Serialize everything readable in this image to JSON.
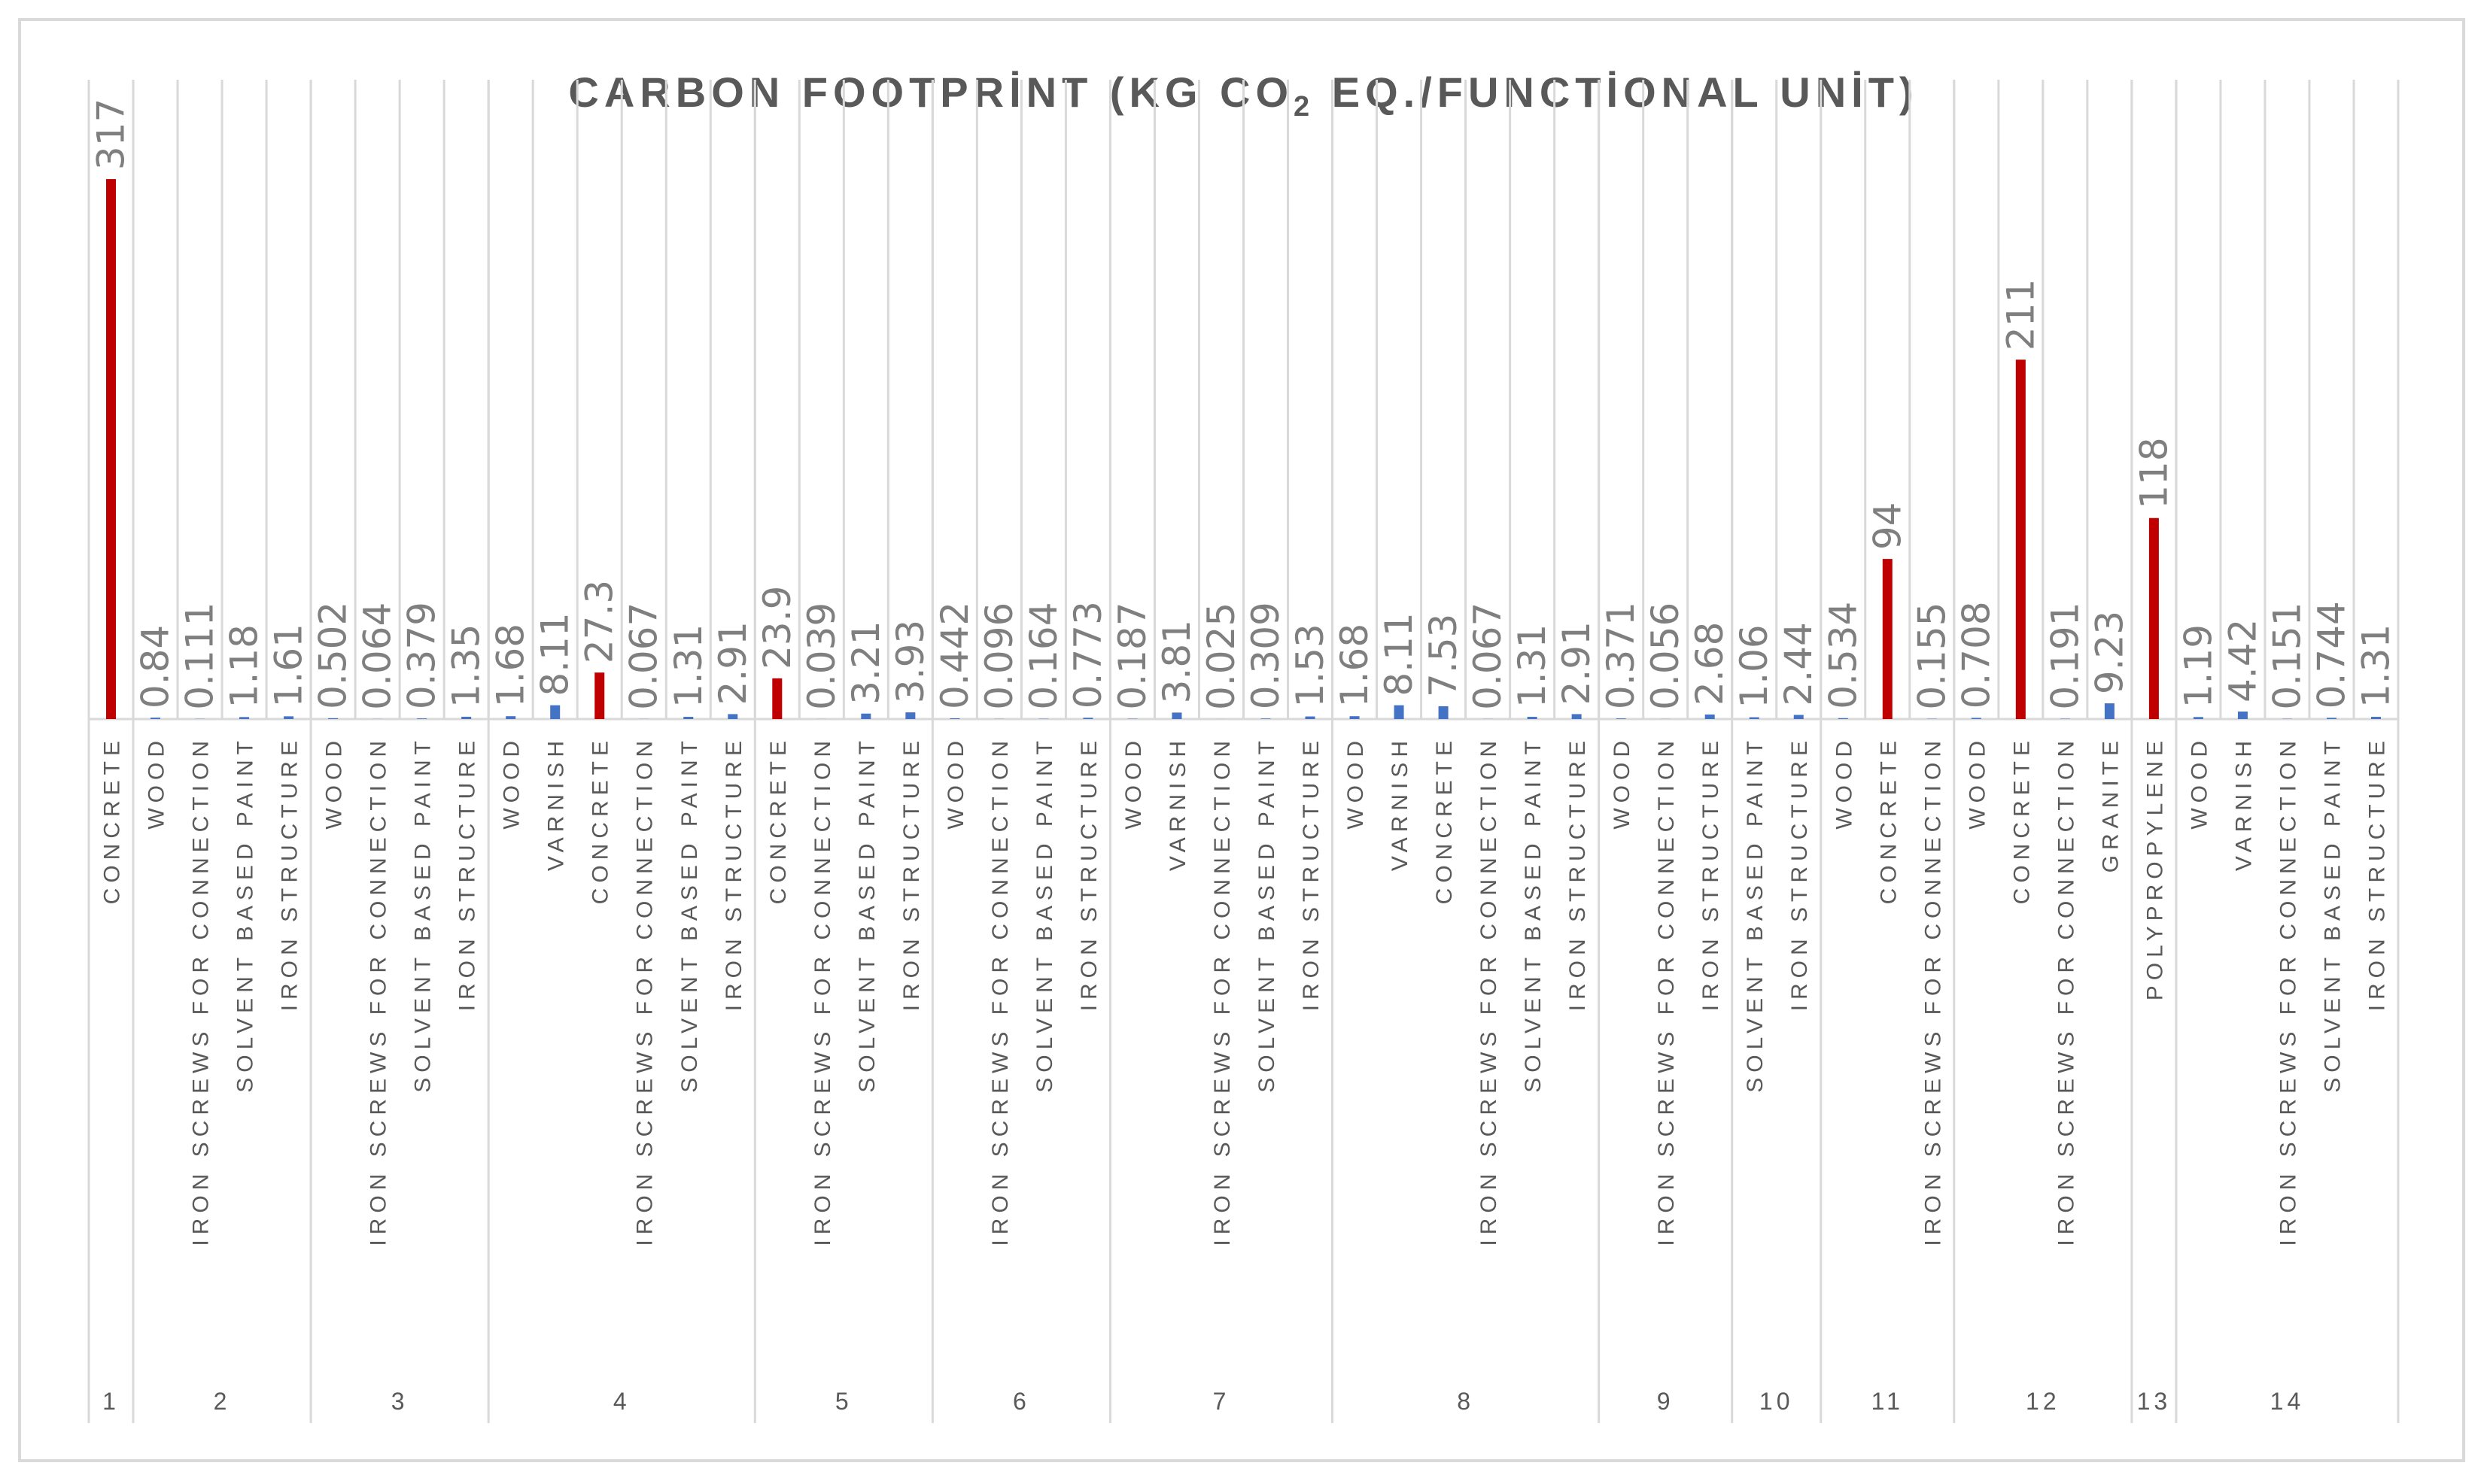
{
  "chart_data": {
    "type": "bar",
    "title_parts": [
      "CARBON FOOTPRİNT (KG CO",
      "2",
      " EQ./FUNCTİONAL UNİT)"
    ],
    "value_labels": [
      "317",
      "0.84",
      "0.111",
      "1.18",
      "1.61",
      "0.502",
      "0.064",
      "0.379",
      "1.35",
      "1.68",
      "8.11",
      "27.3",
      "0.067",
      "1.31",
      "2.91",
      "23.9",
      "0.039",
      "3.21",
      "3.93",
      "0.442",
      "0.096",
      "0.164",
      "0.773",
      "0.187",
      "3.81",
      "0.025",
      "0.309",
      "1.53",
      "1.68",
      "8.11",
      "7.53",
      "0.067",
      "1.31",
      "2.91",
      "0.371",
      "0.056",
      "2.68",
      "1.06",
      "2.44",
      "0.534",
      "94",
      "0.155",
      "0.708",
      "211",
      "0.191",
      "9.23",
      "118",
      "1.19",
      "4.42",
      "0.151",
      "0.744",
      "1.31"
    ],
    "ylim": [
      0,
      340
    ],
    "colors": {
      "highlight": "#c00000",
      "normal": "#4472c4"
    },
    "groups": [
      {
        "label": "1",
        "items": [
          {
            "category": "CONCRETE",
            "value": 317,
            "highlight": true
          }
        ]
      },
      {
        "label": "2",
        "items": [
          {
            "category": "WOOD",
            "value": 0.84
          },
          {
            "category": "IRON SCREWS FOR CONNECTION",
            "value": 0.111
          },
          {
            "category": "SOLVENT BASED PAINT",
            "value": 1.18
          },
          {
            "category": "IRON STRUCTURE",
            "value": 1.61
          }
        ]
      },
      {
        "label": "3",
        "items": [
          {
            "category": "WOOD",
            "value": 0.502
          },
          {
            "category": "IRON SCREWS FOR CONNECTION",
            "value": 0.064
          },
          {
            "category": "SOLVENT BASED PAINT",
            "value": 0.379
          },
          {
            "category": "IRON STRUCTURE",
            "value": 1.35
          }
        ]
      },
      {
        "label": "4",
        "items": [
          {
            "category": "WOOD",
            "value": 1.68
          },
          {
            "category": "VARNISH",
            "value": 8.11
          },
          {
            "category": "CONCRETE",
            "value": 27.3,
            "highlight": true
          },
          {
            "category": "IRON SCREWS FOR CONNECTION",
            "value": 0.067
          },
          {
            "category": "SOLVENT BASED PAINT",
            "value": 1.31
          },
          {
            "category": "IRON STRUCTURE",
            "value": 2.91
          }
        ]
      },
      {
        "label": "5",
        "items": [
          {
            "category": "CONCRETE",
            "value": 23.9,
            "highlight": true
          },
          {
            "category": "IRON SCREWS FOR CONNECTION",
            "value": 0.039
          },
          {
            "category": "SOLVENT BASED PAINT",
            "value": 3.21
          },
          {
            "category": "IRON STRUCTURE",
            "value": 3.93
          }
        ]
      },
      {
        "label": "6",
        "items": [
          {
            "category": "WOOD",
            "value": 0.442
          },
          {
            "category": "IRON SCREWS FOR CONNECTION",
            "value": 0.096
          },
          {
            "category": "SOLVENT BASED PAINT",
            "value": 0.164
          },
          {
            "category": "IRON STRUCTURE",
            "value": 0.773
          }
        ]
      },
      {
        "label": "7",
        "items": [
          {
            "category": "WOOD",
            "value": 0.187
          },
          {
            "category": "VARNISH",
            "value": 3.81
          },
          {
            "category": "IRON SCREWS FOR CONNECTION",
            "value": 0.025
          },
          {
            "category": "SOLVENT BASED PAINT",
            "value": 0.309
          },
          {
            "category": "IRON STRUCTURE",
            "value": 1.53
          }
        ]
      },
      {
        "label": "8",
        "items": [
          {
            "category": "WOOD",
            "value": 1.68
          },
          {
            "category": "VARNISH",
            "value": 8.11
          },
          {
            "category": "CONCRETE",
            "value": 7.53
          },
          {
            "category": "IRON SCREWS FOR CONNECTION",
            "value": 0.067
          },
          {
            "category": "SOLVENT BASED PAINT",
            "value": 1.31
          },
          {
            "category": "IRON STRUCTURE",
            "value": 2.91
          }
        ]
      },
      {
        "label": "9",
        "items": [
          {
            "category": "WOOD",
            "value": 0.371
          },
          {
            "category": "IRON SCREWS FOR CONNECTION",
            "value": 0.056
          },
          {
            "category": "IRON STRUCTURE",
            "value": 2.68
          }
        ]
      },
      {
        "label": "10",
        "items": [
          {
            "category": "SOLVENT BASED PAINT",
            "value": 1.06
          },
          {
            "category": "IRON STRUCTURE",
            "value": 2.44
          }
        ]
      },
      {
        "label": "11",
        "items": [
          {
            "category": "WOOD",
            "value": 0.534
          },
          {
            "category": "CONCRETE",
            "value": 94,
            "highlight": true
          },
          {
            "category": "IRON SCREWS FOR CONNECTION",
            "value": 0.155
          }
        ]
      },
      {
        "label": "12",
        "items": [
          {
            "category": "WOOD",
            "value": 0.708
          },
          {
            "category": "CONCRETE",
            "value": 211,
            "highlight": true
          },
          {
            "category": "IRON SCREWS FOR CONNECTION",
            "value": 0.191
          },
          {
            "category": "GRANITE",
            "value": 9.23
          }
        ]
      },
      {
        "label": "13",
        "items": [
          {
            "category": "POLYPROPYLENE",
            "value": 118,
            "highlight": true
          }
        ]
      },
      {
        "label": "14",
        "items": [
          {
            "category": "WOOD",
            "value": 1.19
          },
          {
            "category": "VARNISH",
            "value": 4.42
          },
          {
            "category": "IRON SCREWS FOR CONNECTION",
            "value": 0.151
          },
          {
            "category": "SOLVENT BASED PAINT",
            "value": 0.744
          },
          {
            "category": "IRON STRUCTURE",
            "value": 1.31
          }
        ]
      }
    ]
  }
}
